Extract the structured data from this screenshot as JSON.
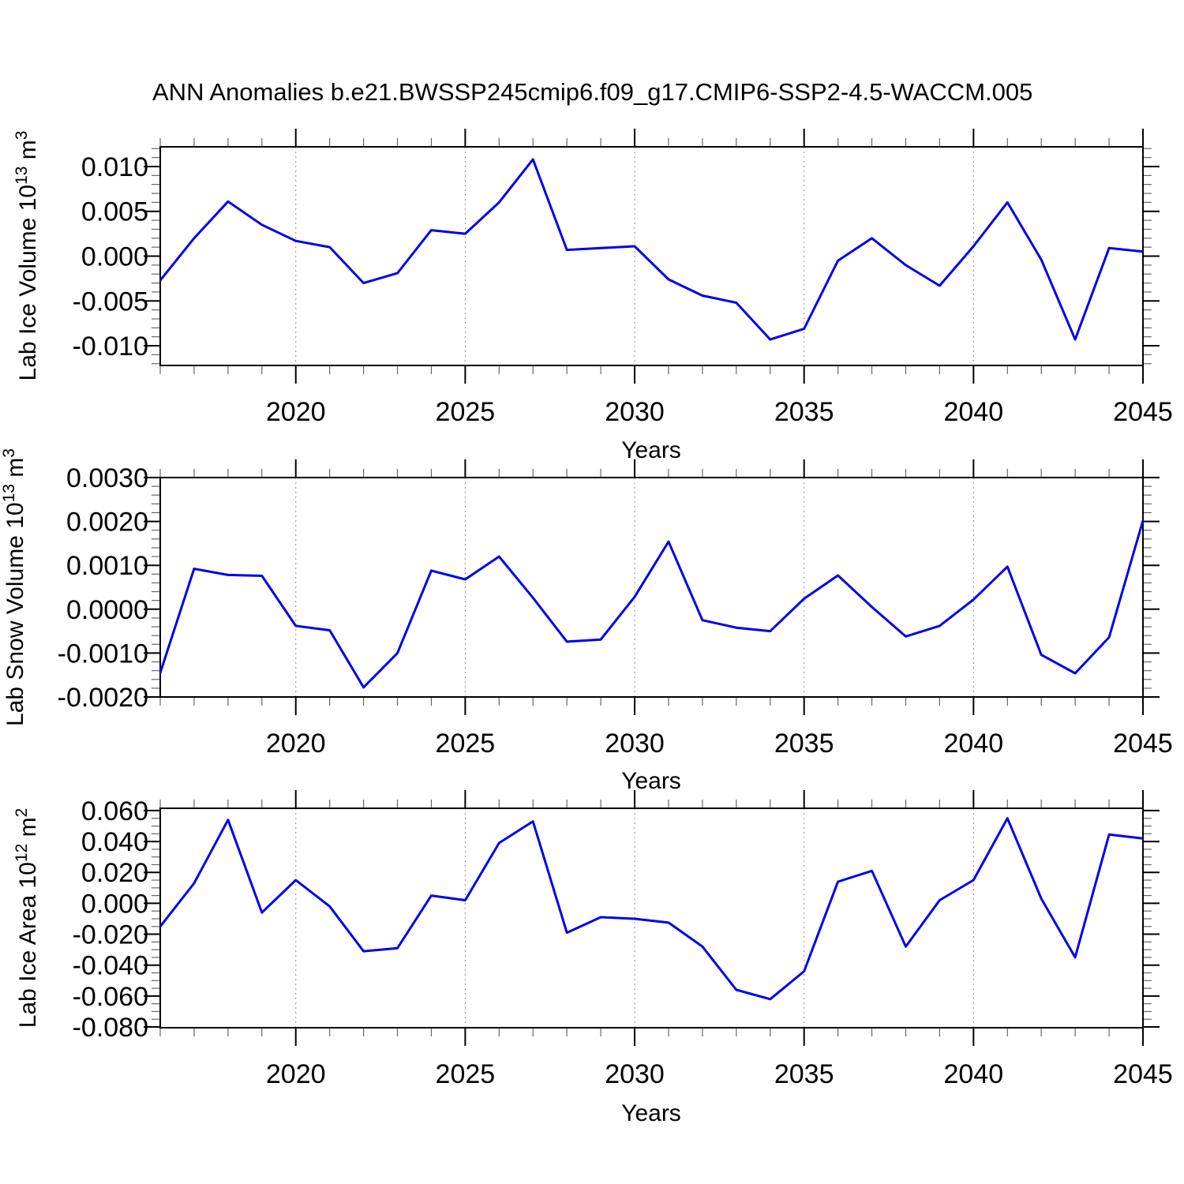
{
  "header": {
    "title": "ANN Anomalies b.e21.BWSSP245cmip6.f09_g17.CMIP6-SSP2-4.5-WACCM.005"
  },
  "colors": {
    "line": "#0000ee",
    "axis": "#000000",
    "major_tick": "#000000",
    "minor_tick": "#666666",
    "gridline": "#909090",
    "text": "#000000",
    "background": "#ffffff"
  },
  "x_axis": {
    "label": "Years",
    "xlim": [
      2016,
      2045
    ],
    "major_tick_years": [
      2020,
      2025,
      2030,
      2035,
      2040,
      2045
    ],
    "tick_labels": [
      "2020",
      "2025",
      "2030",
      "2035",
      "2040",
      "2045"
    ],
    "gridline_years": [
      2020,
      2025,
      2030,
      2035,
      2040
    ],
    "years": [
      2016,
      2017,
      2018,
      2019,
      2020,
      2021,
      2022,
      2023,
      2024,
      2025,
      2026,
      2027,
      2028,
      2029,
      2030,
      2031,
      2032,
      2033,
      2034,
      2035,
      2036,
      2037,
      2038,
      2039,
      2040,
      2041,
      2042,
      2043,
      2044,
      2045
    ]
  },
  "chart_data": [
    {
      "type": "line",
      "title": "",
      "ylabel": "Lab Ice Volume 10^13 m^3",
      "ylabel_rich": [
        [
          "Lab Ice Volume 10",
          false
        ],
        [
          "13",
          true
        ],
        [
          " m",
          false
        ],
        [
          "3",
          true
        ]
      ],
      "xlabel": "Years",
      "ylim": [
        -0.0122,
        0.0122
      ],
      "ytick_values": [
        0.01,
        0.005,
        0.0,
        -0.005,
        -0.01
      ],
      "ytick_labels": [
        "0.010",
        "0.005",
        "0.000",
        "-0.005",
        "-0.010"
      ],
      "ytick_minor_step": 0.001,
      "grid": "x-dashed",
      "legend": "none",
      "x": [
        2016,
        2017,
        2018,
        2019,
        2020,
        2021,
        2022,
        2023,
        2024,
        2025,
        2026,
        2027,
        2028,
        2029,
        2030,
        2031,
        2032,
        2033,
        2034,
        2035,
        2036,
        2037,
        2038,
        2039,
        2040,
        2041,
        2042,
        2043,
        2044,
        2045
      ],
      "values": [
        -0.0027,
        0.002,
        0.0061,
        0.0035,
        0.0017,
        0.001,
        -0.003,
        -0.0019,
        0.0029,
        0.0025,
        0.006,
        0.0108,
        0.0007,
        0.0009,
        0.0011,
        -0.0026,
        -0.0044,
        -0.0052,
        -0.0093,
        -0.0081,
        -0.0005,
        0.002,
        -0.001,
        -0.0033,
        0.0011,
        0.006,
        -0.0004,
        -0.0093,
        0.0009,
        0.0005
      ]
    },
    {
      "type": "line",
      "title": "",
      "ylabel": "Lab Snow Volume 10^13 m^3",
      "ylabel_rich": [
        [
          "Lab Snow Volume 10",
          false
        ],
        [
          "13",
          true
        ],
        [
          " m",
          false
        ],
        [
          "3",
          true
        ]
      ],
      "xlabel": "Years",
      "ylim": [
        -0.002,
        0.003
      ],
      "ytick_values": [
        0.003,
        0.002,
        0.001,
        0.0,
        -0.001,
        -0.002
      ],
      "ytick_labels": [
        "0.0030",
        "0.0020",
        "0.0010",
        "0.0000",
        "-0.0010",
        "-0.0020"
      ],
      "ytick_minor_step": 0.0002,
      "grid": "x-dashed",
      "legend": "none",
      "x": [
        2016,
        2017,
        2018,
        2019,
        2020,
        2021,
        2022,
        2023,
        2024,
        2025,
        2026,
        2027,
        2028,
        2029,
        2030,
        2031,
        2032,
        2033,
        2034,
        2035,
        2036,
        2037,
        2038,
        2039,
        2040,
        2041,
        2042,
        2043,
        2044,
        2045
      ],
      "values": [
        -0.00145,
        0.00092,
        0.00078,
        0.00076,
        -0.00038,
        -0.00048,
        -0.00178,
        -0.001,
        0.00088,
        0.00068,
        0.0012,
        0.00026,
        -0.00074,
        -0.00069,
        0.00028,
        0.00154,
        -0.00025,
        -0.00042,
        -0.0005,
        0.00024,
        0.00077,
        5e-05,
        -0.00062,
        -0.00038,
        0.00022,
        0.00097,
        -0.00104,
        -0.00146,
        -0.00064,
        0.00202
      ]
    },
    {
      "type": "line",
      "title": "",
      "ylabel": "Lab Ice Area 10^12 m^2",
      "ylabel_rich": [
        [
          "Lab Ice Area 10",
          false
        ],
        [
          "12",
          true
        ],
        [
          " m",
          false
        ],
        [
          "2",
          true
        ]
      ],
      "xlabel": "Years",
      "ylim": [
        -0.0805,
        0.0615
      ],
      "ytick_values": [
        0.06,
        0.04,
        0.02,
        0.0,
        -0.02,
        -0.04,
        -0.06,
        -0.08
      ],
      "ytick_labels": [
        "0.060",
        "0.040",
        "0.020",
        "0.000",
        "-0.020",
        "-0.040",
        "-0.060",
        "-0.080"
      ],
      "ytick_minor_step": 0.005,
      "grid": "x-dashed",
      "legend": "none",
      "x": [
        2016,
        2017,
        2018,
        2019,
        2020,
        2021,
        2022,
        2023,
        2024,
        2025,
        2026,
        2027,
        2028,
        2029,
        2030,
        2031,
        2032,
        2033,
        2034,
        2035,
        2036,
        2037,
        2038,
        2039,
        2040,
        2041,
        2042,
        2043,
        2044,
        2045
      ],
      "values": [
        -0.015,
        0.013,
        0.054,
        -0.006,
        0.015,
        -0.002,
        -0.031,
        -0.029,
        0.005,
        0.002,
        0.039,
        0.053,
        -0.019,
        -0.009,
        -0.01,
        -0.0125,
        -0.028,
        -0.056,
        -0.062,
        -0.044,
        0.014,
        0.021,
        -0.028,
        0.002,
        0.015,
        0.055,
        0.003,
        -0.035,
        0.0445,
        0.042
      ]
    }
  ]
}
